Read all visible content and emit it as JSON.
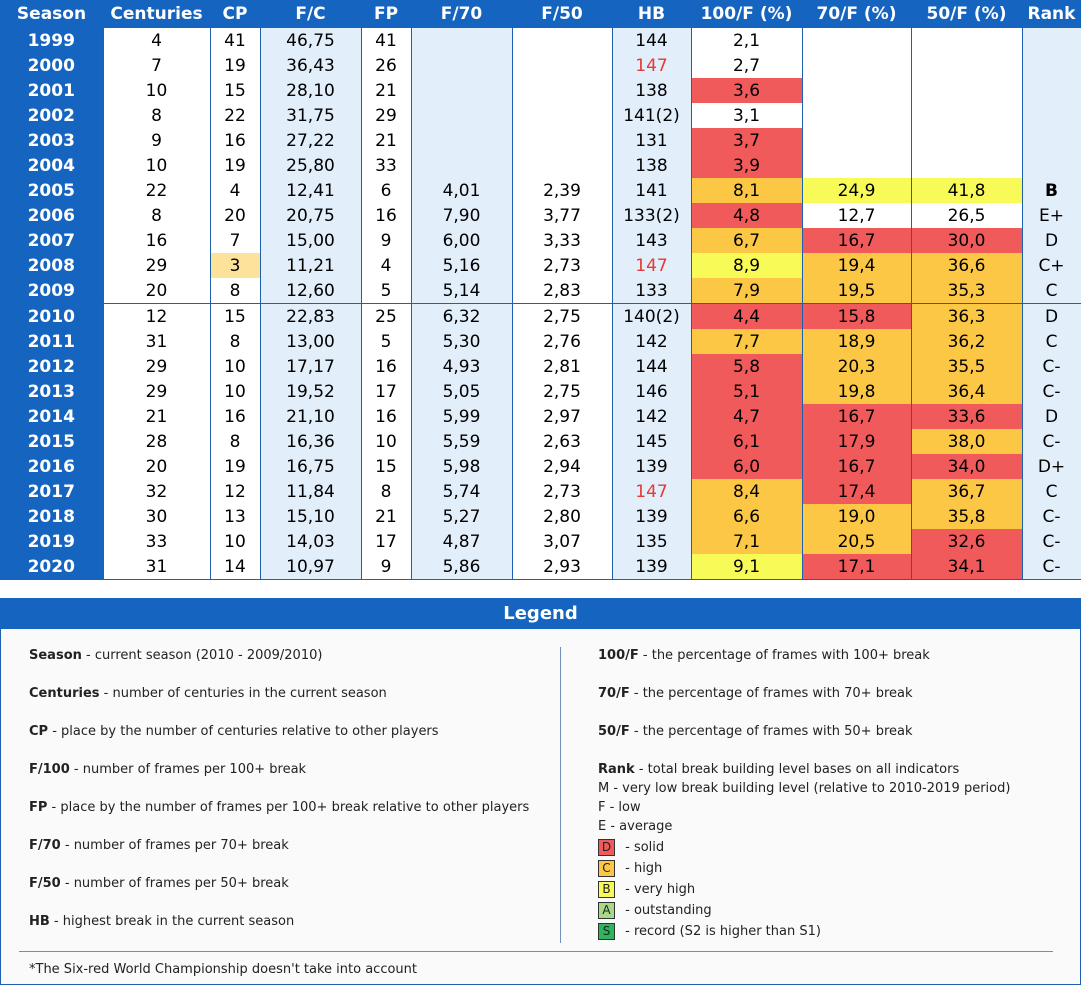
{
  "table": {
    "headers": [
      "Season",
      "Centuries",
      "CP",
      "F/C",
      "FP",
      "F/70",
      "F/50",
      "HB",
      "100/F (%)",
      "70/F (%)",
      "50/F (%)",
      "Rank"
    ],
    "rows": [
      {
        "season": "1999",
        "centuries": "4",
        "cp": "41",
        "fc": "46,75",
        "fp": "41",
        "f70": "",
        "f50": "",
        "hb": "144",
        "p100": "2,1",
        "p70": "",
        "p50": "",
        "rank": ""
      },
      {
        "season": "2000",
        "centuries": "7",
        "cp": "19",
        "fc": "36,43",
        "fp": "26",
        "f70": "",
        "f50": "",
        "hb": "147",
        "p100": "2,7",
        "p70": "",
        "p50": "",
        "rank": ""
      },
      {
        "season": "2001",
        "centuries": "10",
        "cp": "15",
        "fc": "28,10",
        "fp": "21",
        "f70": "",
        "f50": "",
        "hb": "138",
        "p100": "3,6",
        "p70": "",
        "p50": "",
        "rank": ""
      },
      {
        "season": "2002",
        "centuries": "8",
        "cp": "22",
        "fc": "31,75",
        "fp": "29",
        "f70": "",
        "f50": "",
        "hb": "141(2)",
        "p100": "3,1",
        "p70": "",
        "p50": "",
        "rank": ""
      },
      {
        "season": "2003",
        "centuries": "9",
        "cp": "16",
        "fc": "27,22",
        "fp": "21",
        "f70": "",
        "f50": "",
        "hb": "131",
        "p100": "3,7",
        "p70": "",
        "p50": "",
        "rank": ""
      },
      {
        "season": "2004",
        "centuries": "10",
        "cp": "19",
        "fc": "25,80",
        "fp": "33",
        "f70": "",
        "f50": "",
        "hb": "138",
        "p100": "3,9",
        "p70": "",
        "p50": "",
        "rank": ""
      },
      {
        "season": "2005",
        "centuries": "22",
        "cp": "4",
        "fc": "12,41",
        "fp": "6",
        "f70": "4,01",
        "f50": "2,39",
        "hb": "141",
        "p100": "8,1",
        "p70": "24,9",
        "p50": "41,8",
        "rank": "B"
      },
      {
        "season": "2006",
        "centuries": "8",
        "cp": "20",
        "fc": "20,75",
        "fp": "16",
        "f70": "7,90",
        "f50": "3,77",
        "hb": "133(2)",
        "p100": "4,8",
        "p70": "12,7",
        "p50": "26,5",
        "rank": "E+"
      },
      {
        "season": "2007",
        "centuries": "16",
        "cp": "7",
        "fc": "15,00",
        "fp": "9",
        "f70": "6,00",
        "f50": "3,33",
        "hb": "143",
        "p100": "6,7",
        "p70": "16,7",
        "p50": "30,0",
        "rank": "D"
      },
      {
        "season": "2008",
        "centuries": "29",
        "cp": "3",
        "fc": "11,21",
        "fp": "4",
        "f70": "5,16",
        "f50": "2,73",
        "hb": "147",
        "p100": "8,9",
        "p70": "19,4",
        "p50": "36,6",
        "rank": "C+"
      },
      {
        "season": "2009",
        "centuries": "20",
        "cp": "8",
        "fc": "12,60",
        "fp": "5",
        "f70": "5,14",
        "f50": "2,83",
        "hb": "133",
        "p100": "7,9",
        "p70": "19,5",
        "p50": "35,3",
        "rank": "C"
      },
      {
        "season": "2010",
        "centuries": "12",
        "cp": "15",
        "fc": "22,83",
        "fp": "25",
        "f70": "6,32",
        "f50": "2,75",
        "hb": "140(2)",
        "p100": "4,4",
        "p70": "15,8",
        "p50": "36,3",
        "rank": "D"
      },
      {
        "season": "2011",
        "centuries": "31",
        "cp": "8",
        "fc": "13,00",
        "fp": "5",
        "f70": "5,30",
        "f50": "2,76",
        "hb": "142",
        "p100": "7,7",
        "p70": "18,9",
        "p50": "36,2",
        "rank": "C"
      },
      {
        "season": "2012",
        "centuries": "29",
        "cp": "10",
        "fc": "17,17",
        "fp": "16",
        "f70": "4,93",
        "f50": "2,81",
        "hb": "144",
        "p100": "5,8",
        "p70": "20,3",
        "p50": "35,5",
        "rank": "C-"
      },
      {
        "season": "2013",
        "centuries": "29",
        "cp": "10",
        "fc": "19,52",
        "fp": "17",
        "f70": "5,05",
        "f50": "2,75",
        "hb": "146",
        "p100": "5,1",
        "p70": "19,8",
        "p50": "36,4",
        "rank": "C-"
      },
      {
        "season": "2014",
        "centuries": "21",
        "cp": "16",
        "fc": "21,10",
        "fp": "16",
        "f70": "5,99",
        "f50": "2,97",
        "hb": "142",
        "p100": "4,7",
        "p70": "16,7",
        "p50": "33,6",
        "rank": "D"
      },
      {
        "season": "2015",
        "centuries": "28",
        "cp": "8",
        "fc": "16,36",
        "fp": "10",
        "f70": "5,59",
        "f50": "2,63",
        "hb": "145",
        "p100": "6,1",
        "p70": "17,9",
        "p50": "38,0",
        "rank": "C-"
      },
      {
        "season": "2016",
        "centuries": "20",
        "cp": "19",
        "fc": "16,75",
        "fp": "15",
        "f70": "5,98",
        "f50": "2,94",
        "hb": "139",
        "p100": "6,0",
        "p70": "16,7",
        "p50": "34,0",
        "rank": "D+"
      },
      {
        "season": "2017",
        "centuries": "32",
        "cp": "12",
        "fc": "11,84",
        "fp": "8",
        "f70": "5,74",
        "f50": "2,73",
        "hb": "147",
        "p100": "8,4",
        "p70": "17,4",
        "p50": "36,7",
        "rank": "C"
      },
      {
        "season": "2018",
        "centuries": "30",
        "cp": "13",
        "fc": "15,10",
        "fp": "21",
        "f70": "5,27",
        "f50": "2,80",
        "hb": "139",
        "p100": "6,6",
        "p70": "19,0",
        "p50": "35,8",
        "rank": "C-"
      },
      {
        "season": "2019",
        "centuries": "33",
        "cp": "10",
        "fc": "14,03",
        "fp": "17",
        "f70": "4,87",
        "f50": "3,07",
        "hb": "135",
        "p100": "7,1",
        "p70": "20,5",
        "p50": "32,6",
        "rank": "C-"
      },
      {
        "season": "2020",
        "centuries": "31",
        "cp": "14",
        "fc": "10,97",
        "fp": "9",
        "f70": "5,86",
        "f50": "2,93",
        "hb": "139",
        "p100": "9,1",
        "p70": "17,1",
        "p50": "34,1",
        "rank": "C-"
      }
    ]
  },
  "colors": {
    "header_blue": "#1565c0",
    "red": "#f15a5a",
    "orange": "#fbc744",
    "yellow": "#f8fa58",
    "peach": "#fde39a",
    "light_green": "#a8d88a",
    "green": "#2fb55e",
    "red_text": "#e53935"
  },
  "legend": {
    "title": "Legend",
    "left": [
      {
        "key": "Season",
        "desc": " - current season (2010 - 2009/2010)"
      },
      {
        "key": "Centuries",
        "desc": " - number of centuries in the current season"
      },
      {
        "key": "CP",
        "desc": " - place by the number of centuries relative to other players"
      },
      {
        "key": "F/100",
        "desc": " - number of frames per 100+ break"
      },
      {
        "key": "FP",
        "desc": " - place by the number of frames per 100+ break relative to other players"
      },
      {
        "key": "F/70",
        "desc": " - number of frames per 70+ break"
      },
      {
        "key": "F/50",
        "desc": " - number of frames per 50+ break"
      },
      {
        "key": "HB",
        "desc": " - highest break in the current season"
      }
    ],
    "right": [
      {
        "key": "100/F",
        "desc": " - the percentage of frames with 100+ break"
      },
      {
        "key": "70/F",
        "desc": " - the percentage of frames with 70+ break"
      },
      {
        "key": "50/F",
        "desc": " - the percentage of frames with 50+ break"
      }
    ],
    "rank_key": "Rank",
    "rank_desc": " - total break building level bases on all indicators",
    "rank_levels": [
      {
        "text": "M - very low break building level (relative to 2010-2019 period)"
      },
      {
        "text": "F - low"
      },
      {
        "text": "E - average"
      },
      {
        "chip": "D",
        "desc": " - solid"
      },
      {
        "chip": "C",
        "desc": " - high"
      },
      {
        "chip": "B",
        "desc": " - very high"
      },
      {
        "chip": "A",
        "desc": " - outstanding"
      },
      {
        "chip": "S",
        "desc": " - record (S2 is higher than S1)"
      }
    ],
    "footnote": "*The Six-red World Championship doesn't take into account"
  }
}
